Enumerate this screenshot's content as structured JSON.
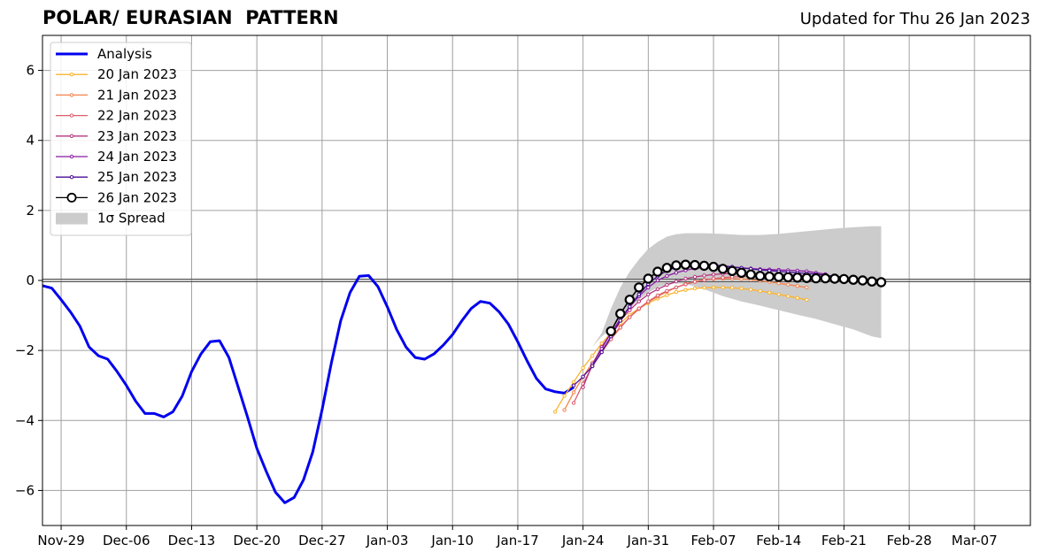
{
  "chart_data": {
    "type": "line",
    "title": "POLAR/ EURASIAN  PATTERN",
    "subtitle": "Updated for Thu 26 Jan 2023",
    "x_unit": "date",
    "xlim": [
      "2022-11-27",
      "2023-03-13"
    ],
    "ylim": [
      -7,
      7
    ],
    "grid": true,
    "legend_position": "top-left",
    "x_ticks": [
      {
        "date": "2022-11-29",
        "label": "Nov-29"
      },
      {
        "date": "2022-12-06",
        "label": "Dec-06"
      },
      {
        "date": "2022-12-13",
        "label": "Dec-13"
      },
      {
        "date": "2022-12-20",
        "label": "Dec-20"
      },
      {
        "date": "2022-12-27",
        "label": "Dec-27"
      },
      {
        "date": "2023-01-03",
        "label": "Jan-03"
      },
      {
        "date": "2023-01-10",
        "label": "Jan-10"
      },
      {
        "date": "2023-01-17",
        "label": "Jan-17"
      },
      {
        "date": "2023-01-24",
        "label": "Jan-24"
      },
      {
        "date": "2023-01-31",
        "label": "Jan-31"
      },
      {
        "date": "2023-02-07",
        "label": "Feb-07"
      },
      {
        "date": "2023-02-14",
        "label": "Feb-14"
      },
      {
        "date": "2023-02-21",
        "label": "Feb-21"
      },
      {
        "date": "2023-02-28",
        "label": "Feb-28"
      },
      {
        "date": "2023-03-07",
        "label": "Mar-07"
      }
    ],
    "y_ticks": [
      {
        "value": -6,
        "label": "−6"
      },
      {
        "value": -4,
        "label": "−4"
      },
      {
        "value": -2,
        "label": "−2"
      },
      {
        "value": 0,
        "label": "0"
      },
      {
        "value": 2,
        "label": "2"
      },
      {
        "value": 4,
        "label": "4"
      },
      {
        "value": 6,
        "label": "6"
      }
    ],
    "analysis": {
      "name": "Analysis",
      "color": "#0000ee",
      "start_date": "2022-11-27",
      "values": [
        -0.15,
        -0.22,
        -0.55,
        -0.9,
        -1.3,
        -1.9,
        -2.15,
        -2.25,
        -2.6,
        -3.0,
        -3.45,
        -3.8,
        -3.8,
        -3.9,
        -3.75,
        -3.3,
        -2.6,
        -2.1,
        -1.75,
        -1.72,
        -2.2,
        -3.05,
        -3.9,
        -4.8,
        -5.45,
        -6.05,
        -6.35,
        -6.2,
        -5.7,
        -4.9,
        -3.7,
        -2.35,
        -1.15,
        -0.35,
        0.12,
        0.14,
        -0.18,
        -0.75,
        -1.4,
        -1.9,
        -2.2,
        -2.25,
        -2.1,
        -1.85,
        -1.55,
        -1.15,
        -0.8,
        -0.6,
        -0.65,
        -0.9,
        -1.25,
        -1.75,
        -2.3,
        -2.8,
        -3.1,
        -3.18,
        -3.22,
        -3.05
      ]
    },
    "spread": {
      "name": "1σ Spread",
      "color": "#cccccc",
      "dates": [
        "2023-01-25",
        "2023-01-26",
        "2023-01-27",
        "2023-01-28",
        "2023-01-29",
        "2023-01-30",
        "2023-01-31",
        "2023-02-01",
        "2023-02-02",
        "2023-02-03",
        "2023-02-04",
        "2023-02-06",
        "2023-02-08",
        "2023-02-10",
        "2023-02-12",
        "2023-02-14",
        "2023-02-16",
        "2023-02-18",
        "2023-02-20",
        "2023-02-22",
        "2023-02-24",
        "2023-02-25"
      ],
      "upper": [
        -1.9,
        -1.5,
        -0.8,
        -0.2,
        0.25,
        0.6,
        0.9,
        1.1,
        1.25,
        1.32,
        1.35,
        1.35,
        1.33,
        1.3,
        1.3,
        1.33,
        1.38,
        1.43,
        1.48,
        1.52,
        1.55,
        1.55
      ],
      "lower": [
        -1.9,
        -1.6,
        -1.4,
        -1.1,
        -0.8,
        -0.55,
        -0.35,
        -0.2,
        -0.12,
        -0.08,
        -0.1,
        -0.25,
        -0.45,
        -0.6,
        -0.72,
        -0.85,
        -0.98,
        -1.1,
        -1.25,
        -1.4,
        -1.6,
        -1.65
      ]
    },
    "forecasts": [
      {
        "name": "20 Jan 2023",
        "color": "#fbb32f",
        "start_date": "2023-01-21",
        "values": [
          -3.75,
          -3.3,
          -2.9,
          -2.5,
          -2.15,
          -1.8,
          -1.5,
          -1.22,
          -0.98,
          -0.8,
          -0.65,
          -0.52,
          -0.42,
          -0.33,
          -0.27,
          -0.23,
          -0.21,
          -0.2,
          -0.2,
          -0.21,
          -0.23,
          -0.26,
          -0.3,
          -0.35,
          -0.4,
          -0.45,
          -0.5,
          -0.55
        ]
      },
      {
        "name": "21 Jan 2023",
        "color": "#f4844e",
        "start_date": "2023-01-22",
        "values": [
          -3.7,
          -3.2,
          -2.75,
          -2.35,
          -2.0,
          -1.65,
          -1.32,
          -1.05,
          -0.82,
          -0.62,
          -0.46,
          -0.32,
          -0.2,
          -0.1,
          -0.03,
          0.02,
          0.04,
          0.05,
          0.05,
          0.04,
          0.02,
          -0.01,
          -0.04,
          -0.08,
          -0.12,
          -0.16,
          -0.2
        ]
      },
      {
        "name": "22 Jan 2023",
        "color": "#dc5d6c",
        "start_date": "2023-01-23",
        "values": [
          -3.5,
          -2.95,
          -2.45,
          -2.05,
          -1.68,
          -1.35,
          -1.05,
          -0.8,
          -0.6,
          -0.43,
          -0.3,
          -0.2,
          -0.11,
          -0.04,
          0.01,
          0.05,
          0.08,
          0.1,
          0.11,
          0.11,
          0.1,
          0.09,
          0.07,
          0.05,
          0.02,
          0.0,
          -0.02
        ]
      },
      {
        "name": "23 Jan 2023",
        "color": "#b5367e",
        "start_date": "2023-01-24",
        "values": [
          -3.05,
          -2.4,
          -1.9,
          -1.5,
          -1.15,
          -0.85,
          -0.6,
          -0.4,
          -0.25,
          -0.13,
          -0.03,
          0.05,
          0.1,
          0.14,
          0.17,
          0.19,
          0.2,
          0.2,
          0.2,
          0.19,
          0.18,
          0.17,
          0.16,
          0.14,
          0.12,
          0.1
        ]
      },
      {
        "name": "24 Jan 2023",
        "color": "#8a1aa0",
        "start_date": "2023-01-25",
        "values": [
          -2.4,
          -1.95,
          -1.5,
          -1.1,
          -0.75,
          -0.45,
          -0.2,
          0.0,
          0.13,
          0.22,
          0.29,
          0.34,
          0.37,
          0.39,
          0.39,
          0.38,
          0.36,
          0.34,
          0.32,
          0.31,
          0.3,
          0.29,
          0.28,
          0.26,
          0.22,
          0.18
        ]
      },
      {
        "name": "25 Jan 2023",
        "color": "#4a0c96",
        "start_date": "2023-01-23",
        "values": [
          -3.0,
          -2.75,
          -2.45,
          -2.05,
          -1.6,
          -1.15,
          -0.75,
          -0.4,
          -0.1,
          0.12,
          0.28,
          0.38,
          0.44,
          0.46,
          0.46,
          0.44,
          0.42,
          0.39,
          0.36,
          0.33,
          0.3,
          0.28,
          0.26,
          0.24,
          0.22,
          0.2,
          0.18,
          0.15,
          0.12,
          0.1
        ]
      },
      {
        "name": "26 Jan 2023",
        "color": "#000000",
        "start_date": "2023-01-27",
        "values": [
          -1.45,
          -0.95,
          -0.55,
          -0.2,
          0.05,
          0.25,
          0.36,
          0.43,
          0.45,
          0.44,
          0.42,
          0.39,
          0.33,
          0.27,
          0.22,
          0.17,
          0.13,
          0.11,
          0.1,
          0.09,
          0.08,
          0.07,
          0.06,
          0.06,
          0.05,
          0.04,
          0.02,
          0.0,
          -0.03,
          -0.05
        ]
      }
    ],
    "legend": [
      "Analysis",
      "20 Jan 2023",
      "21 Jan 2023",
      "22 Jan 2023",
      "23 Jan 2023",
      "24 Jan 2023",
      "25 Jan 2023",
      "26 Jan 2023",
      "1σ Spread"
    ]
  }
}
